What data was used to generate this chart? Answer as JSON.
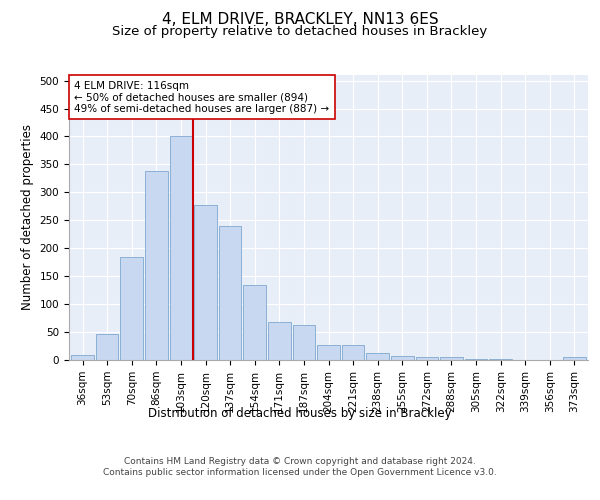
{
  "title": "4, ELM DRIVE, BRACKLEY, NN13 6ES",
  "subtitle": "Size of property relative to detached houses in Brackley",
  "xlabel": "Distribution of detached houses by size in Brackley",
  "ylabel": "Number of detached properties",
  "categories": [
    "36sqm",
    "53sqm",
    "70sqm",
    "86sqm",
    "103sqm",
    "120sqm",
    "137sqm",
    "154sqm",
    "171sqm",
    "187sqm",
    "204sqm",
    "221sqm",
    "238sqm",
    "255sqm",
    "272sqm",
    "288sqm",
    "305sqm",
    "322sqm",
    "339sqm",
    "356sqm",
    "373sqm"
  ],
  "bar_values": [
    9,
    46,
    185,
    338,
    400,
    277,
    240,
    135,
    68,
    62,
    26,
    26,
    12,
    7,
    5,
    5,
    2,
    1,
    0,
    0,
    5
  ],
  "bar_color": "#c8d8f0",
  "bar_edge_color": "#7fa8d0",
  "vline_color": "#cc0000",
  "annotation_text": "4 ELM DRIVE: 116sqm\n← 50% of detached houses are smaller (894)\n49% of semi-detached houses are larger (887) →",
  "annotation_box_color": "white",
  "annotation_box_edge_color": "#cc0000",
  "footer_text": "Contains HM Land Registry data © Crown copyright and database right 2024.\nContains public sector information licensed under the Open Government Licence v3.0.",
  "ylim": [
    0,
    510
  ],
  "axes_background_color": "#e8eef8",
  "grid_color": "white",
  "title_fontsize": 11,
  "subtitle_fontsize": 9.5,
  "label_fontsize": 8.5,
  "tick_fontsize": 7.5,
  "footer_fontsize": 6.5,
  "annotation_fontsize": 7.5
}
